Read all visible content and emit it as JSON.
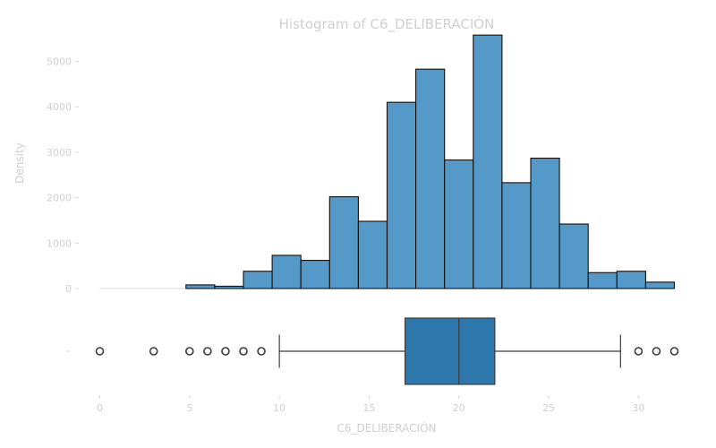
{
  "chart_data": [
    {
      "type": "bar",
      "subtype": "histogram",
      "title": "Histogram of C6_DELIBERACIÓN",
      "ylabel": "Density",
      "xlabel": "",
      "bin_edges": [
        0,
        1.6,
        3.2,
        4.8,
        6.4,
        8.0,
        9.6,
        11.2,
        12.8,
        14.4,
        16.0,
        17.6,
        19.2,
        20.8,
        22.4,
        24.0,
        25.6,
        27.2,
        28.8,
        30.4,
        32.0
      ],
      "values": [
        0,
        0,
        0,
        80,
        50,
        380,
        730,
        620,
        2020,
        1480,
        4100,
        4830,
        2830,
        5580,
        2330,
        2870,
        1420,
        350,
        380,
        140
      ],
      "bar_color": "#5499c7",
      "xlim": [
        0,
        32
      ],
      "ylim": [
        0,
        5800
      ],
      "yticks": [
        0,
        1000,
        2000,
        3000,
        4000,
        5000
      ],
      "yticks_text": [
        "0",
        "1000",
        "2000",
        "3000",
        "4000",
        "5000"
      ],
      "grid": false
    },
    {
      "type": "box",
      "xlabel": "C6_DELIBERACIÓN",
      "ytick_text": "–",
      "box_color": "#2e77ad",
      "q1": 17,
      "median": 20,
      "q3": 22,
      "whisker_low": 10,
      "whisker_high": 29,
      "outliers": [
        0,
        3,
        5,
        6,
        7,
        8,
        9,
        30,
        31,
        32
      ],
      "xlim": [
        0,
        32
      ],
      "xticks": [
        0,
        5,
        10,
        15,
        20,
        25,
        30
      ],
      "xticks_text": [
        "0",
        "5",
        "10",
        "15",
        "20",
        "25",
        "30"
      ]
    }
  ]
}
